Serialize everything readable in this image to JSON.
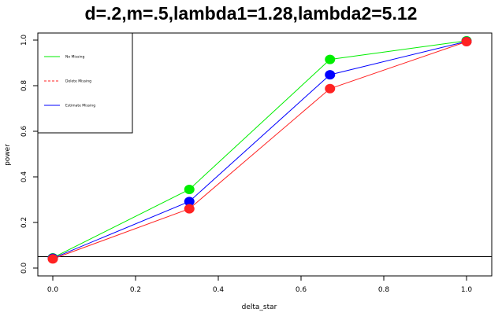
{
  "chart_data": {
    "type": "line",
    "title": "d=.2,m=.5,lambda1=1.28,lambda2=5.12",
    "xlabel": "delta_star",
    "ylabel": "power",
    "x": [
      0.0,
      0.33,
      0.67,
      1.0
    ],
    "xlim": [
      0,
      1
    ],
    "ylim": [
      0,
      1
    ],
    "xticks": [
      "0.0",
      "0.2",
      "0.4",
      "0.6",
      "0.8",
      "1.0"
    ],
    "yticks": [
      "0.0",
      "0.2",
      "0.4",
      "0.6",
      "0.8",
      "1.0"
    ],
    "reference_line_y": 0.05,
    "legend_position": "top-left",
    "series": [
      {
        "name": "No Missing",
        "color": "#00ee00",
        "line": "solid",
        "values": [
          0.045,
          0.345,
          0.915,
          0.997
        ]
      },
      {
        "name": "Delete Missing",
        "color": "#ff2222",
        "line": "dashed",
        "values": [
          0.04,
          0.26,
          0.787,
          0.993
        ]
      },
      {
        "name": "Estimate Missing",
        "color": "#0000ff",
        "line": "solid",
        "values": [
          0.043,
          0.292,
          0.848,
          0.994
        ]
      }
    ]
  }
}
